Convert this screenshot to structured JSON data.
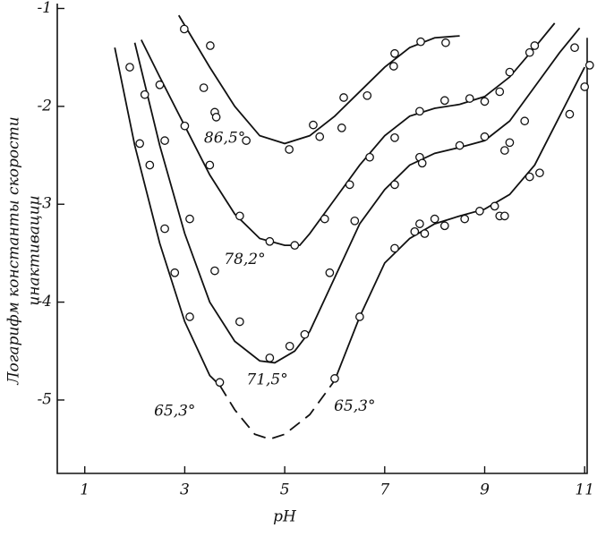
{
  "chart_data": {
    "type": "scatter",
    "x_label": "pH",
    "y_label": [
      "Логарифм константы скорости",
      "инактивации"
    ],
    "xlim": [
      0.45,
      11.05
    ],
    "ylim": [
      -5.75,
      -0.95
    ],
    "xticks": [
      1,
      3,
      5,
      7,
      9,
      11
    ],
    "yticks": [
      -1,
      -2,
      -3,
      -4,
      -5
    ],
    "color": "#111111",
    "series": [
      {
        "x": [
          2.99,
          3.51,
          3.38,
          3.6,
          3.63,
          4.23,
          5.09,
          5.57,
          5.7,
          6.14,
          6.18,
          6.65,
          7.18,
          7.2,
          7.72,
          8.22
        ],
        "values": [
          -1.21,
          -1.38,
          -1.81,
          -2.06,
          -2.11,
          -2.35,
          -2.44,
          -2.19,
          -2.31,
          -2.22,
          -1.91,
          -1.89,
          -1.59,
          -1.46,
          -1.34,
          -1.35
        ]
      },
      {
        "x": [
          2.5,
          3.0,
          3.5,
          4.1,
          4.7,
          5.2,
          5.8,
          6.3,
          6.7,
          7.2,
          7.7,
          8.2,
          8.7,
          9.0,
          9.3,
          9.5,
          9.9,
          10.0
        ],
        "values": [
          -1.78,
          -2.2,
          -2.6,
          -3.12,
          -3.38,
          -3.42,
          -3.15,
          -2.8,
          -2.52,
          -2.32,
          -2.05,
          -1.94,
          -1.92,
          -1.95,
          -1.85,
          -1.65,
          -1.45,
          -1.38
        ]
      },
      {
        "x": [
          2.2,
          2.6,
          3.1,
          3.6,
          4.1,
          4.7,
          5.1,
          5.4,
          5.9,
          6.4,
          7.2,
          7.7,
          7.75,
          8.5,
          9.0,
          9.4,
          9.5,
          9.8,
          10.8
        ],
        "values": [
          -1.88,
          -2.35,
          -3.15,
          -3.68,
          -4.2,
          -4.57,
          -4.45,
          -4.33,
          -3.7,
          -3.17,
          -2.8,
          -2.52,
          -2.58,
          -2.4,
          -2.31,
          -2.45,
          -2.37,
          -2.15,
          -1.4
        ]
      },
      {
        "x": [
          1.9,
          2.1,
          2.3,
          2.6,
          2.8,
          3.1,
          3.7,
          6.0,
          6.5,
          7.2,
          7.6,
          7.7,
          7.8,
          8.0,
          8.2,
          8.6,
          8.9,
          9.2,
          9.3,
          9.4,
          9.9,
          10.1,
          10.7,
          11.0,
          11.1
        ],
        "values": [
          -1.6,
          -2.38,
          -2.6,
          -3.25,
          -3.7,
          -4.15,
          -4.82,
          -4.78,
          -4.15,
          -3.45,
          -3.28,
          -3.2,
          -3.3,
          -3.15,
          -3.22,
          -3.15,
          -3.07,
          -3.02,
          -3.12,
          -3.12,
          -2.72,
          -2.68,
          -2.08,
          -1.8,
          -1.58
        ]
      }
    ],
    "curves": [
      {
        "dashed": false,
        "x": [
          2.88,
          3.5,
          4.0,
          4.5,
          5.0,
          5.5,
          6.0,
          6.5,
          7.0,
          7.5,
          8.0,
          8.5
        ],
        "values": [
          -1.07,
          -1.6,
          -2.0,
          -2.3,
          -2.38,
          -2.3,
          -2.1,
          -1.85,
          -1.6,
          -1.4,
          -1.3,
          -1.28
        ]
      },
      {
        "dashed": false,
        "x": [
          2.13,
          2.5,
          3.0,
          3.5,
          4.0,
          4.5,
          5.0,
          5.3,
          5.5,
          6.0,
          6.5,
          7.0,
          7.5,
          8.0,
          8.5,
          9.0,
          9.5,
          10.0,
          10.4
        ],
        "values": [
          -1.32,
          -1.7,
          -2.2,
          -2.7,
          -3.1,
          -3.35,
          -3.42,
          -3.42,
          -3.3,
          -2.95,
          -2.6,
          -2.3,
          -2.1,
          -2.02,
          -1.98,
          -1.9,
          -1.7,
          -1.4,
          -1.15
        ]
      },
      {
        "dashed": false,
        "x": [
          2.0,
          2.5,
          3.0,
          3.5,
          4.0,
          4.5,
          4.8,
          5.2,
          5.5,
          6.0,
          6.5,
          7.0,
          7.5,
          8.0,
          8.5,
          9.0,
          9.5,
          10.0,
          10.5,
          10.9
        ],
        "values": [
          -1.35,
          -2.4,
          -3.3,
          -4.0,
          -4.4,
          -4.6,
          -4.62,
          -4.5,
          -4.3,
          -3.75,
          -3.2,
          -2.85,
          -2.6,
          -2.48,
          -2.42,
          -2.35,
          -2.15,
          -1.8,
          -1.45,
          -1.2
        ]
      },
      {
        "dashed": false,
        "x": [
          1.6,
          2.0,
          2.5,
          3.0,
          3.5,
          3.7
        ],
        "values": [
          -1.4,
          -2.4,
          -3.4,
          -4.2,
          -4.75,
          -4.85
        ]
      },
      {
        "dashed": true,
        "x": [
          3.7,
          4.0,
          4.4,
          4.7,
          5.0,
          5.5,
          6.0
        ],
        "values": [
          -4.85,
          -5.1,
          -5.35,
          -5.4,
          -5.35,
          -5.15,
          -4.8
        ]
      },
      {
        "dashed": false,
        "x": [
          6.0,
          6.5,
          7.0,
          7.5,
          8.0,
          8.5,
          9.0,
          9.5,
          10.0,
          10.5,
          11.0
        ],
        "values": [
          -4.8,
          -4.15,
          -3.6,
          -3.35,
          -3.2,
          -3.12,
          -3.05,
          -2.9,
          -2.6,
          -2.1,
          -1.6
        ]
      }
    ],
    "annotations": [
      {
        "text": "86,5°",
        "x": 3.8,
        "y": -2.33
      },
      {
        "text": "78,2°",
        "x": 4.2,
        "y": -3.57
      },
      {
        "text": "71,5°",
        "x": 4.65,
        "y": -4.8
      },
      {
        "text": "65,3°",
        "x": 2.8,
        "y": -5.12
      },
      {
        "text": "65,3°",
        "x": 6.4,
        "y": -5.07
      }
    ]
  }
}
